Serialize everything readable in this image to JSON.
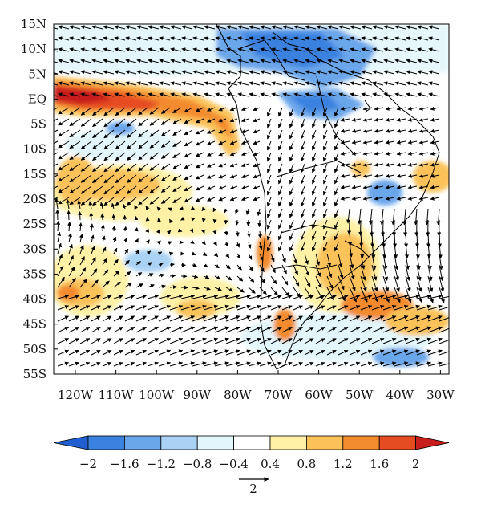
{
  "map": {
    "lat_labels": [
      "15N",
      "10N",
      "5N",
      "EQ",
      "5S",
      "10S",
      "15S",
      "20S",
      "25S",
      "30S",
      "35S",
      "40S",
      "45S",
      "50S",
      "55S"
    ],
    "lon_labels": [
      "120W",
      "110W",
      "100W",
      "90W",
      "80W",
      "70W",
      "60W",
      "50W",
      "40W",
      "30W"
    ],
    "lat_range": [
      -55,
      15
    ],
    "lon_range": [
      -125,
      -30
    ],
    "colorbar": {
      "tick_labels": [
        "−2",
        "−1.6",
        "−1.2",
        "−0.8",
        "−0.4",
        "0.4",
        "0.8",
        "1.2",
        "1.6",
        "2"
      ],
      "colors": [
        "#1f5fd0",
        "#3b82e0",
        "#6aa6ea",
        "#a9d2f4",
        "#e2f6fb",
        "#ffffff",
        "#fff1a6",
        "#fbc25a",
        "#f38b2f",
        "#e64c22",
        "#c81e1e"
      ]
    },
    "reference_vector": {
      "label": "2"
    }
  }
}
